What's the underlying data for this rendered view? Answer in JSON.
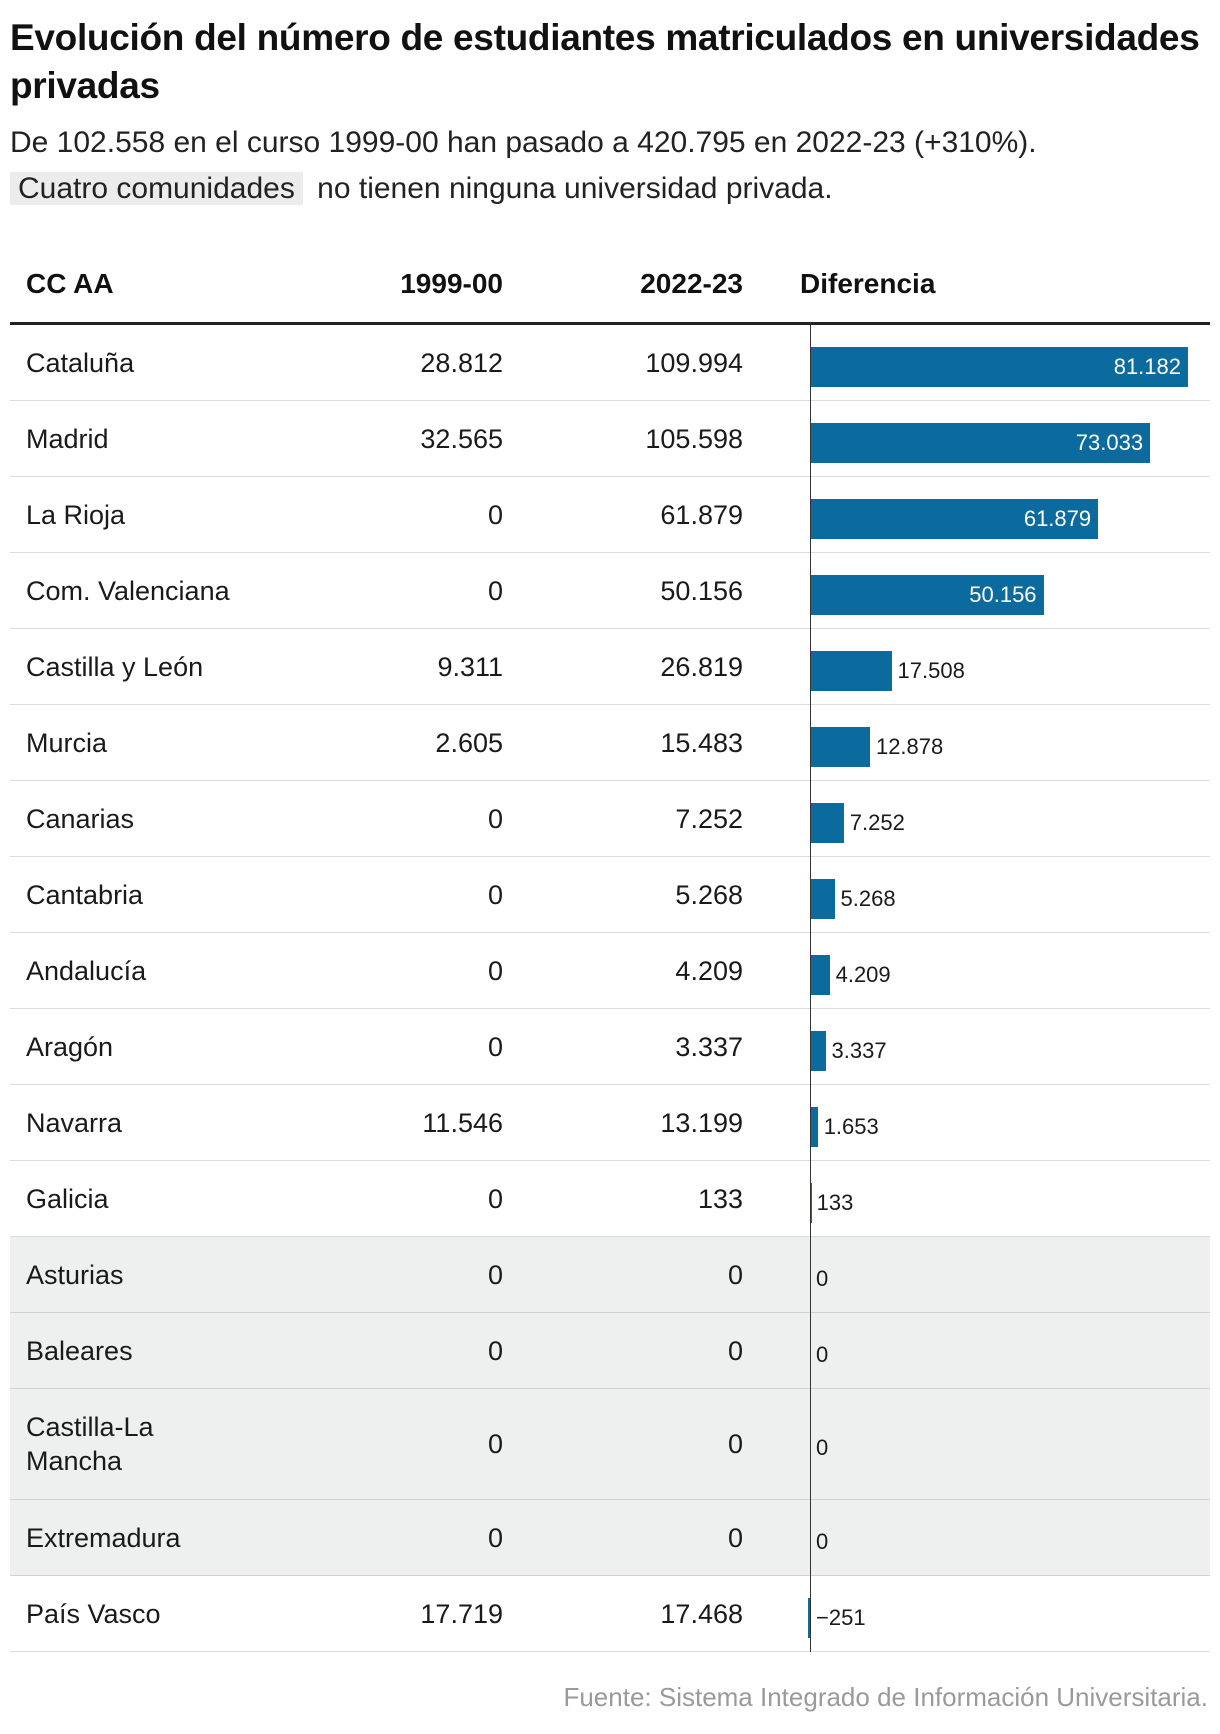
{
  "title": "Evolución del número de estudiantes matriculados en universidades privadas",
  "subtitle": {
    "line1": "De 102.558 en el curso 1999-00 han pasado a 420.795 en 2022-23 (+310%).",
    "highlight": "Cuatro comunidades",
    "line2_rest": "no tienen ninguna universidad privada."
  },
  "headers": {
    "region": "CC AA",
    "year1": "1999-00",
    "year2": "2022-23",
    "diff": "Diferencia"
  },
  "source": "Fuente: Sistema Integrado de Información Universitaria.",
  "colors": {
    "bar": "#0c6b9e",
    "shaded_row": "#eef0f0"
  },
  "chart_data": {
    "type": "table",
    "columns": [
      "CC AA",
      "1999-00",
      "2022-23",
      "Diferencia"
    ],
    "rows": [
      {
        "region": "Cataluña",
        "y1999": "28.812",
        "y2022": "109.994",
        "diff": 81182,
        "diff_label": "81.182",
        "shaded": false
      },
      {
        "region": "Madrid",
        "y1999": "32.565",
        "y2022": "105.598",
        "diff": 73033,
        "diff_label": "73.033",
        "shaded": false
      },
      {
        "region": "La Rioja",
        "y1999": "0",
        "y2022": "61.879",
        "diff": 61879,
        "diff_label": "61.879",
        "shaded": false
      },
      {
        "region": "Com. Valenciana",
        "y1999": "0",
        "y2022": "50.156",
        "diff": 50156,
        "diff_label": "50.156",
        "shaded": false
      },
      {
        "region": "Castilla y León",
        "y1999": "9.311",
        "y2022": "26.819",
        "diff": 17508,
        "diff_label": "17.508",
        "shaded": false
      },
      {
        "region": "Murcia",
        "y1999": "2.605",
        "y2022": "15.483",
        "diff": 12878,
        "diff_label": "12.878",
        "shaded": false
      },
      {
        "region": "Canarias",
        "y1999": "0",
        "y2022": "7.252",
        "diff": 7252,
        "diff_label": "7.252",
        "shaded": false
      },
      {
        "region": "Cantabria",
        "y1999": "0",
        "y2022": "5.268",
        "diff": 5268,
        "diff_label": "5.268",
        "shaded": false
      },
      {
        "region": "Andalucía",
        "y1999": "0",
        "y2022": "4.209",
        "diff": 4209,
        "diff_label": "4.209",
        "shaded": false
      },
      {
        "region": "Aragón",
        "y1999": "0",
        "y2022": "3.337",
        "diff": 3337,
        "diff_label": "3.337",
        "shaded": false
      },
      {
        "region": "Navarra",
        "y1999": "11.546",
        "y2022": "13.199",
        "diff": 1653,
        "diff_label": "1.653",
        "shaded": false
      },
      {
        "region": "Galicia",
        "y1999": "0",
        "y2022": "133",
        "diff": 133,
        "diff_label": "133",
        "shaded": false
      },
      {
        "region": "Asturias",
        "y1999": "0",
        "y2022": "0",
        "diff": 0,
        "diff_label": "0",
        "shaded": true
      },
      {
        "region": "Baleares",
        "y1999": "0",
        "y2022": "0",
        "diff": 0,
        "diff_label": "0",
        "shaded": true
      },
      {
        "region": "Castilla-La Mancha",
        "y1999": "0",
        "y2022": "0",
        "diff": 0,
        "diff_label": "0",
        "shaded": true
      },
      {
        "region": "Extremadura",
        "y1999": "0",
        "y2022": "0",
        "diff": 0,
        "diff_label": "0",
        "shaded": true
      },
      {
        "region": "País Vasco",
        "y1999": "17.719",
        "y2022": "17.468",
        "diff": -251,
        "diff_label": "−251",
        "shaded": false
      }
    ],
    "diff_max": 81182
  }
}
